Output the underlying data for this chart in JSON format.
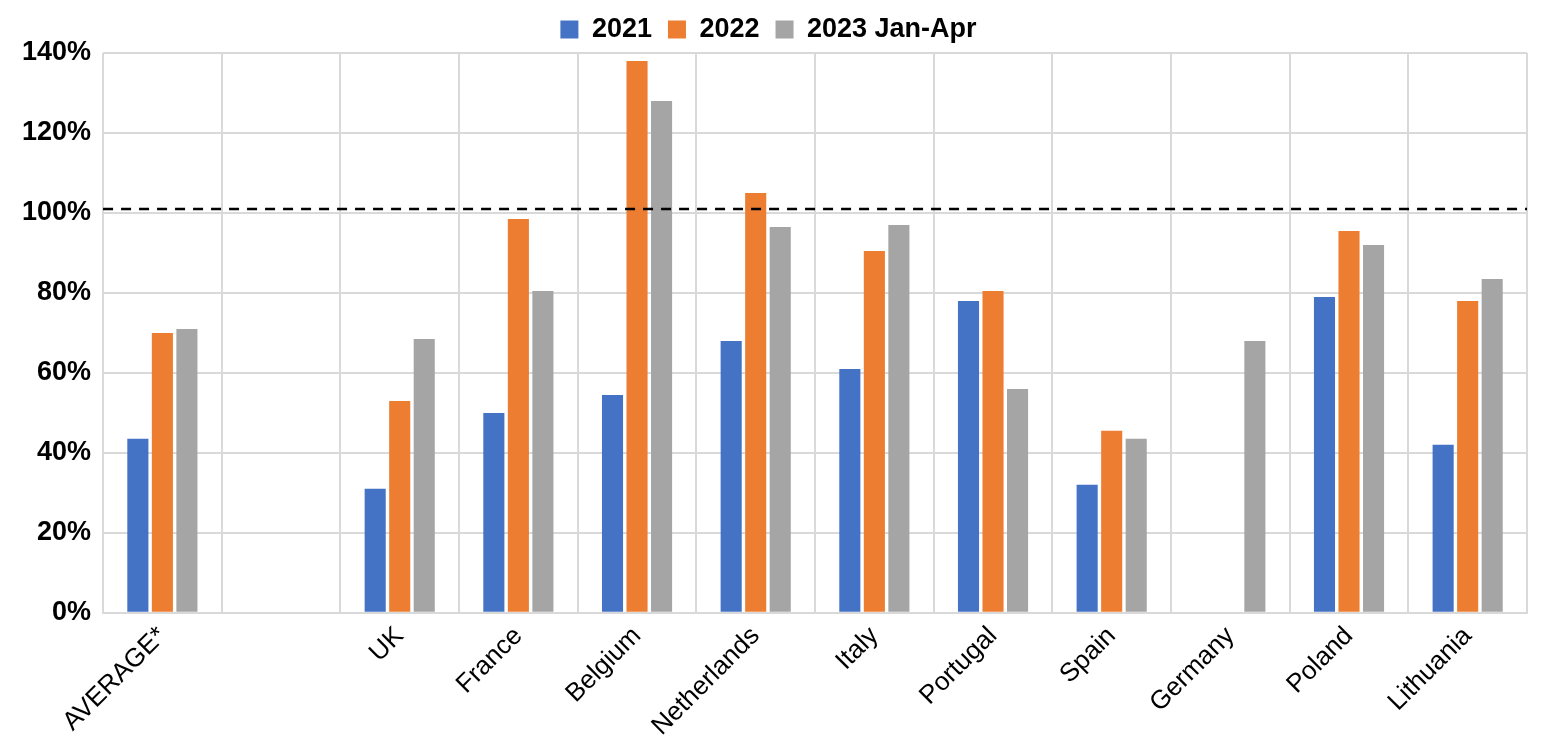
{
  "chart_data": {
    "type": "bar",
    "categories": [
      "AVERAGE*",
      null,
      "UK",
      "France",
      "Belgium",
      "Netherlands",
      "Italy",
      "Portugal",
      "Spain",
      "Germany",
      "Poland",
      "Lithuania"
    ],
    "series": [
      {
        "name": "2021",
        "color": "#4472c4",
        "values": [
          43.5,
          null,
          31,
          50,
          54.5,
          68,
          61,
          78,
          32,
          null,
          79,
          42
        ]
      },
      {
        "name": "2022",
        "color": "#ed7d31",
        "values": [
          70,
          null,
          53,
          98.5,
          138,
          105,
          90.5,
          80.5,
          45.5,
          null,
          95.5,
          78
        ]
      },
      {
        "name": "2023 Jan-Apr",
        "color": "#a5a5a5",
        "values": [
          71,
          null,
          68.5,
          80.5,
          128,
          96.5,
          97,
          56,
          43.5,
          68,
          92,
          83.5
        ]
      }
    ],
    "ylim": [
      0,
      140
    ],
    "yticks": [
      {
        "value": 0,
        "label": "0%"
      },
      {
        "value": 20,
        "label": "20%"
      },
      {
        "value": 40,
        "label": "40%"
      },
      {
        "value": 60,
        "label": "60%"
      },
      {
        "value": 80,
        "label": "80%"
      },
      {
        "value": 100,
        "label": "100%"
      },
      {
        "value": 120,
        "label": "120%"
      },
      {
        "value": 140,
        "label": "140%"
      }
    ],
    "ref_lines": [
      {
        "axis": "y",
        "value": 101,
        "color": "#000000",
        "line_style": "dashed"
      }
    ],
    "grid": true,
    "legend": "top"
  }
}
